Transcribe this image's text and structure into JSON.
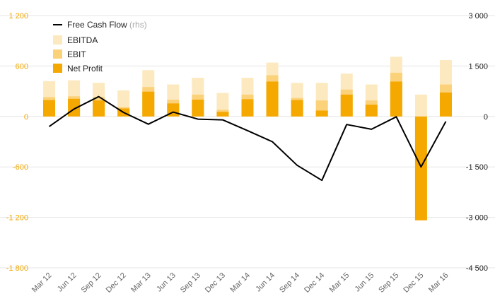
{
  "chart_data": {
    "type": "bar",
    "categories": [
      "Mar 12",
      "Jun 12",
      "Sep 12",
      "Dec 12",
      "Mar 13",
      "Jun 13",
      "Sep 13",
      "Dec 13",
      "Mar 14",
      "Jun 14",
      "Sep 14",
      "Dec 14",
      "Mar 15",
      "Jun 15",
      "Sep 15",
      "Dec 15",
      "Mar 16"
    ],
    "series": [
      {
        "name": "EBITDA",
        "type": "bar",
        "axis": "left",
        "color": "#fde9c0",
        "values": [
          420,
          430,
          400,
          310,
          550,
          380,
          460,
          280,
          460,
          640,
          400,
          400,
          510,
          380,
          710,
          260,
          670
        ]
      },
      {
        "name": "EBIT",
        "type": "bar",
        "axis": "left",
        "color": "#fbd27a",
        "values": [
          230,
          240,
          230,
          110,
          350,
          200,
          260,
          80,
          260,
          490,
          220,
          190,
          320,
          190,
          520,
          0,
          380
        ]
      },
      {
        "name": "Net Profit",
        "type": "bar",
        "axis": "left",
        "color": "#f5a800",
        "values": [
          195,
          210,
          190,
          95,
          295,
          155,
          200,
          55,
          205,
          415,
          195,
          70,
          260,
          140,
          415,
          -1235,
          285
        ]
      },
      {
        "name": "Free Cash Flow",
        "rhs_label": "(rhs)",
        "type": "line",
        "axis": "right",
        "color": "#000000",
        "values": [
          -300,
          220,
          590,
          120,
          -230,
          130,
          -80,
          -100,
          -420,
          -750,
          -1450,
          -1900,
          -240,
          -380,
          -10,
          -1500,
          -150
        ]
      }
    ],
    "left_axis": {
      "ylim": [
        -1800,
        1200
      ],
      "ticks": [
        "1 200",
        "600",
        "0",
        "-600",
        "-1 200",
        "-1 800"
      ],
      "color": "#f0a500"
    },
    "right_axis": {
      "ylim": [
        -4500,
        3000
      ],
      "ticks": [
        "3 000",
        "1 500",
        "0",
        "-1 500",
        "-3 000",
        "-4 500"
      ]
    },
    "legend_position": "top-left",
    "grid": "horizontal"
  }
}
